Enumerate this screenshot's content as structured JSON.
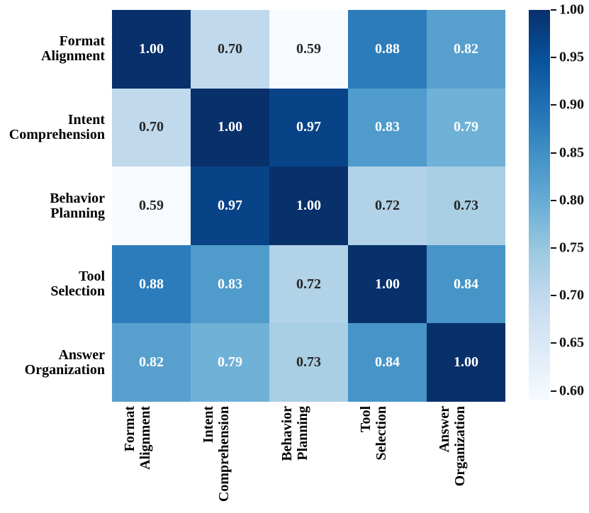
{
  "figure": {
    "background": "#ffffff"
  },
  "colors": {
    "annot_dark_text": "#262626",
    "annot_light_text": "#ffffff",
    "axis_label_text": "#000000",
    "cmap_min": "#f7fbff",
    "cmap_max": "#08306b"
  },
  "chart_data": {
    "type": "heatmap",
    "title": "",
    "categories": [
      "Format\nAlignment",
      "Intent\nComprehension",
      "Behavior\nPlanning",
      "Tool\nSelection",
      "Answer\nOrganization"
    ],
    "matrix": [
      [
        1.0,
        0.7,
        0.59,
        0.88,
        0.82
      ],
      [
        0.7,
        1.0,
        0.97,
        0.83,
        0.79
      ],
      [
        0.59,
        0.97,
        1.0,
        0.72,
        0.73
      ],
      [
        0.88,
        0.83,
        0.72,
        1.0,
        0.84
      ],
      [
        0.82,
        0.79,
        0.73,
        0.84,
        1.0
      ]
    ],
    "vmin": 0.59,
    "vmax": 1.0,
    "colormap": "Blues",
    "grid": false,
    "legend_position": "right",
    "colorbar": {
      "ticks": [
        1.0,
        0.95,
        0.9,
        0.85,
        0.8,
        0.75,
        0.7,
        0.65,
        0.6
      ],
      "tick_labels": [
        "1.00",
        "0.95",
        "0.90",
        "0.85",
        "0.80",
        "0.75",
        "0.70",
        "0.65",
        "0.60"
      ]
    }
  }
}
